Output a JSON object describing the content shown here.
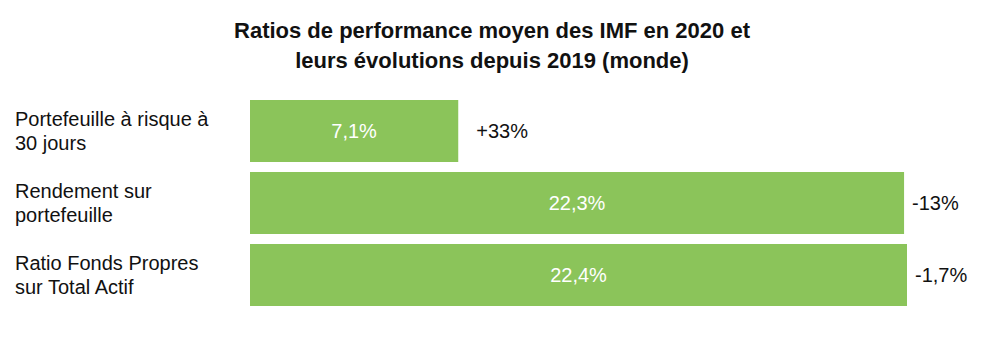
{
  "chart_data": {
    "type": "bar",
    "orientation": "horizontal",
    "title": "Ratios de performance moyen des IMF en 2020 et\nleurs évolutions depuis 2019 (monde)",
    "categories": [
      "Portefeuille à risque à\n30 jours",
      "Rendement sur\nportefeuille",
      "Ratio Fonds Propres\nsur Total Actif"
    ],
    "values": [
      7.1,
      22.3,
      22.4
    ],
    "value_labels": [
      "7,1%",
      "22,3%",
      "22,4%"
    ],
    "changes": [
      33,
      -13,
      -1.7
    ],
    "change_labels": [
      "+33%",
      "-13%",
      "-1,7%"
    ],
    "color": "#8bc45a",
    "xlim": [
      0,
      22.4
    ],
    "data_labels": true,
    "tick_labels": false,
    "grid": false
  }
}
